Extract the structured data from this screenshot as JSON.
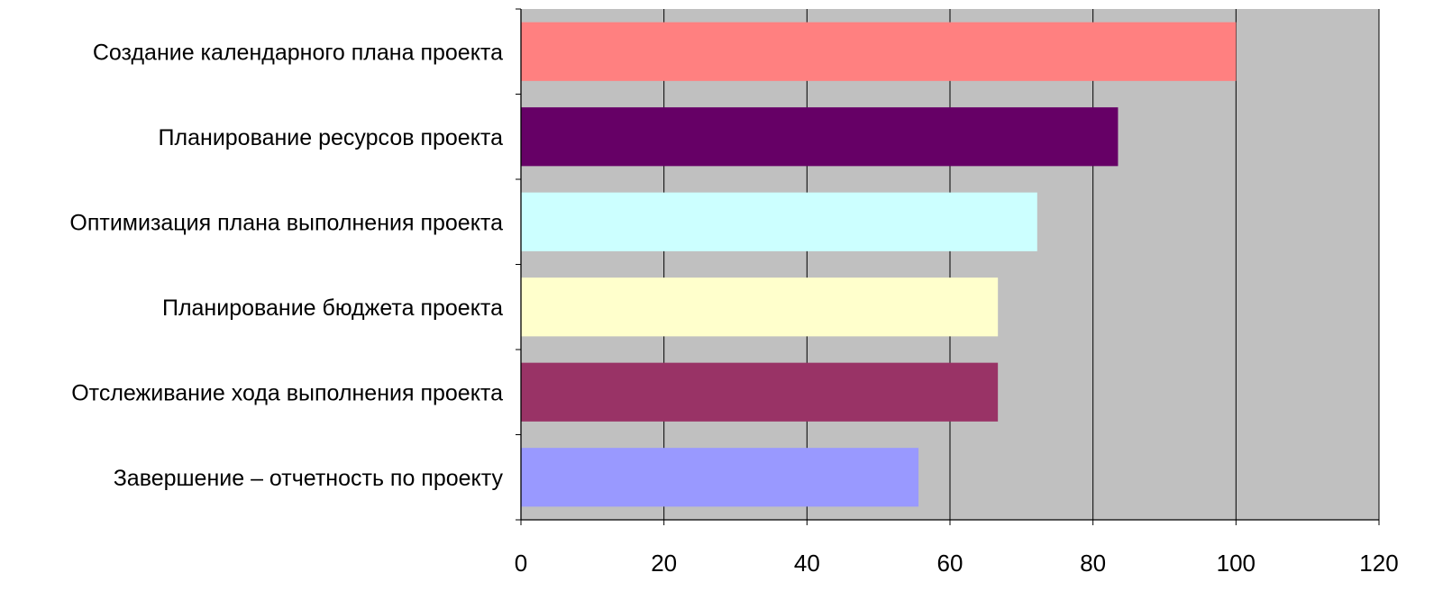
{
  "chart_data": {
    "type": "bar",
    "orientation": "horizontal",
    "categories": [
      "Создание календарного плана проекта",
      "Планирование ресурсов проекта",
      "Оптимизация плана выполнения проекта",
      "Планирование бюджета проекта",
      "Отслеживание хода выполнения проекта",
      "Завершение – отчетность по проекту"
    ],
    "values": [
      100,
      83.5,
      72.2,
      66.7,
      66.7,
      55.6
    ],
    "colors": [
      "#FF8080",
      "#660066",
      "#CCFFFF",
      "#FFFFCC",
      "#993366",
      "#9999FF"
    ],
    "xlim": [
      0,
      120
    ],
    "xticks": [
      0,
      20,
      40,
      60,
      80,
      100,
      120
    ],
    "xtick_labels": [
      "0",
      "20",
      "40",
      "60",
      "80",
      "100",
      "120"
    ],
    "grid": true,
    "plot_background": "#C0C0C0",
    "title": "",
    "xlabel": "",
    "ylabel": ""
  }
}
